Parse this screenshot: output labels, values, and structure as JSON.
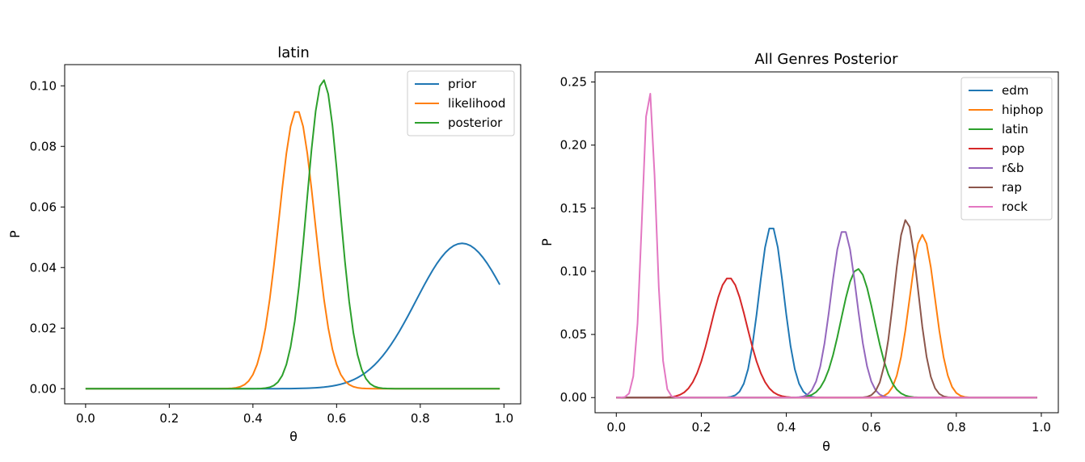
{
  "chart_data": [
    {
      "type": "line",
      "title": "latin",
      "xlabel": "θ",
      "ylabel": "P",
      "xlim": [
        -0.05,
        1.04
      ],
      "ylim": [
        -0.005,
        0.107
      ],
      "xticks": [
        0.0,
        0.2,
        0.4,
        0.6,
        0.8,
        1.0
      ],
      "xtick_labels": [
        "0.0",
        "0.2",
        "0.4",
        "0.6",
        "0.8",
        "1.0"
      ],
      "yticks": [
        0.0,
        0.02,
        0.04,
        0.06,
        0.08,
        0.1
      ],
      "ytick_labels": [
        "0.00",
        "0.02",
        "0.04",
        "0.06",
        "0.08",
        "0.10"
      ],
      "legend_position": "top-right",
      "grid": false,
      "series": [
        {
          "name": "prior",
          "color": "#1f77b4",
          "peak": 0.9,
          "height": 0.048,
          "sigma": 0.11,
          "x_range": [
            0.0,
            0.99
          ]
        },
        {
          "name": "likelihood",
          "color": "#ff7f0e",
          "peak": 0.505,
          "height": 0.092,
          "sigma": 0.043,
          "x_range": [
            0.0,
            0.99
          ]
        },
        {
          "name": "posterior",
          "color": "#2ca02c",
          "peak": 0.568,
          "height": 0.102,
          "sigma": 0.039,
          "x_range": [
            0.0,
            0.99
          ]
        }
      ]
    },
    {
      "type": "line",
      "title": "All Genres Posterior",
      "xlabel": "θ",
      "ylabel": "P",
      "xlim": [
        -0.05,
        1.04
      ],
      "ylim": [
        -0.012,
        0.258
      ],
      "xticks": [
        0.0,
        0.2,
        0.4,
        0.6,
        0.8,
        1.0
      ],
      "xtick_labels": [
        "0.0",
        "0.2",
        "0.4",
        "0.6",
        "0.8",
        "1.0"
      ],
      "yticks": [
        0.0,
        0.05,
        0.1,
        0.15,
        0.2,
        0.25
      ],
      "ytick_labels": [
        "0.00",
        "0.05",
        "0.10",
        "0.15",
        "0.20",
        "0.25"
      ],
      "legend_position": "top-right",
      "grid": false,
      "series": [
        {
          "name": "edm",
          "color": "#1f77b4",
          "peak": 0.365,
          "height": 0.136,
          "sigma": 0.029,
          "x_range": [
            0.0,
            0.99
          ]
        },
        {
          "name": "hiphop",
          "color": "#ff7f0e",
          "peak": 0.72,
          "height": 0.129,
          "sigma": 0.03,
          "x_range": [
            0.0,
            0.99
          ]
        },
        {
          "name": "latin",
          "color": "#2ca02c",
          "peak": 0.568,
          "height": 0.102,
          "sigma": 0.039,
          "x_range": [
            0.0,
            0.99
          ]
        },
        {
          "name": "pop",
          "color": "#d62728",
          "peak": 0.265,
          "height": 0.095,
          "sigma": 0.042,
          "x_range": [
            0.0,
            0.99
          ]
        },
        {
          "name": "r&b",
          "color": "#9467bd",
          "peak": 0.535,
          "height": 0.133,
          "sigma": 0.03,
          "x_range": [
            0.0,
            0.99
          ]
        },
        {
          "name": "rap",
          "color": "#8c564b",
          "peak": 0.682,
          "height": 0.141,
          "sigma": 0.028,
          "x_range": [
            0.0,
            0.99
          ]
        },
        {
          "name": "rock",
          "color": "#e377c2",
          "peak": 0.077,
          "height": 0.245,
          "sigma": 0.016,
          "x_range": [
            0.0,
            0.99
          ]
        }
      ]
    }
  ]
}
